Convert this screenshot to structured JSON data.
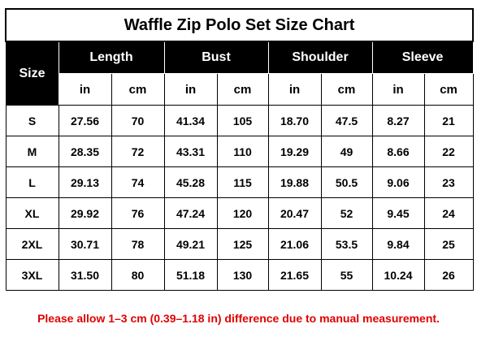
{
  "title": "Waffle Zip Polo Set Size Chart",
  "header": {
    "size_label": "Size",
    "groups": [
      "Length",
      "Bust",
      "Shoulder",
      "Sleeve"
    ],
    "unit_in": "in",
    "unit_cm": "cm"
  },
  "rows": [
    {
      "size": "S",
      "length_in": "27.56",
      "length_cm": "70",
      "bust_in": "41.34",
      "bust_cm": "105",
      "shoulder_in": "18.70",
      "shoulder_cm": "47.5",
      "sleeve_in": "8.27",
      "sleeve_cm": "21"
    },
    {
      "size": "M",
      "length_in": "28.35",
      "length_cm": "72",
      "bust_in": "43.31",
      "bust_cm": "110",
      "shoulder_in": "19.29",
      "shoulder_cm": "49",
      "sleeve_in": "8.66",
      "sleeve_cm": "22"
    },
    {
      "size": "L",
      "length_in": "29.13",
      "length_cm": "74",
      "bust_in": "45.28",
      "bust_cm": "115",
      "shoulder_in": "19.88",
      "shoulder_cm": "50.5",
      "sleeve_in": "9.06",
      "sleeve_cm": "23"
    },
    {
      "size": "XL",
      "length_in": "29.92",
      "length_cm": "76",
      "bust_in": "47.24",
      "bust_cm": "120",
      "shoulder_in": "20.47",
      "shoulder_cm": "52",
      "sleeve_in": "9.45",
      "sleeve_cm": "24"
    },
    {
      "size": "2XL",
      "length_in": "30.71",
      "length_cm": "78",
      "bust_in": "49.21",
      "bust_cm": "125",
      "shoulder_in": "21.06",
      "shoulder_cm": "53.5",
      "sleeve_in": "9.84",
      "sleeve_cm": "25"
    },
    {
      "size": "3XL",
      "length_in": "31.50",
      "length_cm": "80",
      "bust_in": "51.18",
      "bust_cm": "130",
      "shoulder_in": "21.65",
      "shoulder_cm": "55",
      "sleeve_in": "10.24",
      "sleeve_cm": "26"
    }
  ],
  "note": "Please allow 1–3 cm (0.39–1.18 in) difference due to manual measurement.",
  "colors": {
    "header_bg": "#000000",
    "header_text": "#ffffff",
    "note_text": "#e00000"
  }
}
